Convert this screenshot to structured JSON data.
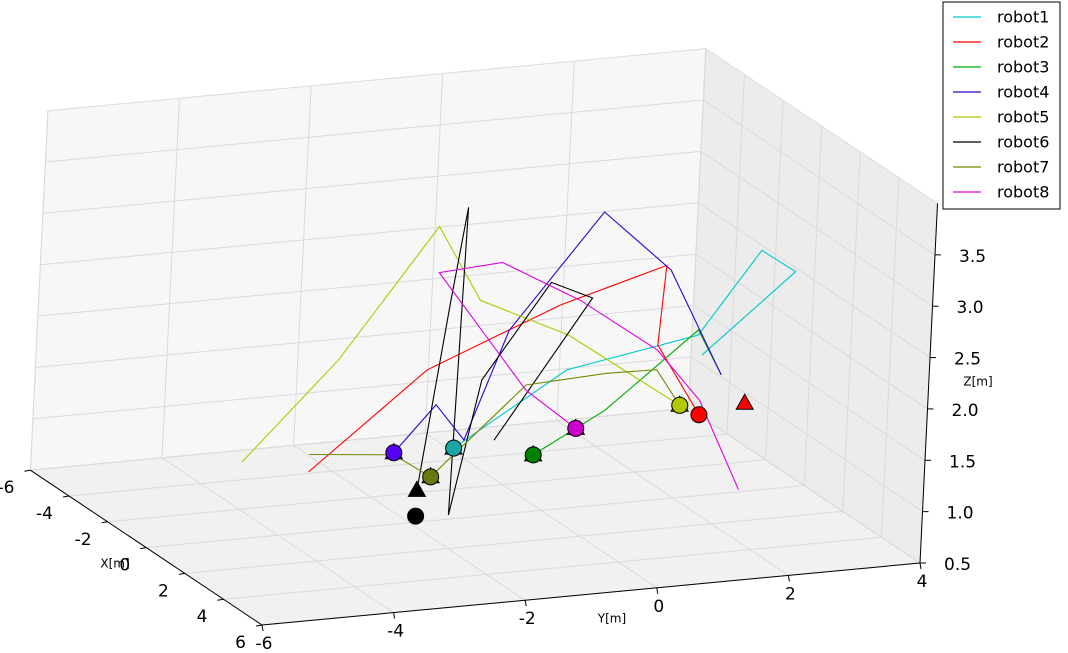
{
  "chart_data": {
    "type": "line3d",
    "xlabel": "X[m]",
    "ylabel": "Y[m]",
    "zlabel": "Z[m]",
    "xlim": [
      -6,
      6
    ],
    "ylim": [
      -6,
      4
    ],
    "zlim": [
      0.5,
      4.0
    ],
    "xticks": [
      -6,
      -4,
      -2,
      0,
      2,
      4,
      6
    ],
    "yticks": [
      -6,
      -4,
      -2,
      0,
      2,
      4
    ],
    "zticks": [
      0.5,
      {
        "value": 1.0,
        "label": "1.0"
      },
      1.5,
      {
        "value": 2.0,
        "label": "2.0"
      },
      2.5,
      {
        "value": 3.0,
        "label": "3.0"
      },
      3.5
    ],
    "grid": true,
    "legend": "upper right",
    "series": [
      {
        "name": "robot1",
        "color": "#00c8c8",
        "marker_color": "#1aa6a6",
        "x": [
          0,
          0,
          0,
          0,
          0,
          0
        ],
        "y": [
          -1.38,
          0.29,
          2.27,
          3.18,
          3.71,
          2.34
        ],
        "z": [
          1.19,
          1.85,
          2.07,
          2.84,
          2.6,
          1.87
        ],
        "start": {
          "x": 0,
          "y": -1.38,
          "z": 1.19
        },
        "goal": {
          "x": 0,
          "y": -1.38,
          "z": 1.19
        }
      },
      {
        "name": "robot2",
        "color": "#ff0000",
        "marker_color": "#ff0000",
        "x": [
          0,
          0,
          0,
          0,
          0,
          0
        ],
        "y": [
          -3.58,
          -1.84,
          0.14,
          1.74,
          1.66,
          2.34
        ],
        "z": [
          1.09,
          1.98,
          2.49,
          2.78,
          2.01,
          1.29
        ],
        "start": {
          "x": 0,
          "y": 2.34,
          "z": 1.29
        },
        "goal": {
          "x": 0,
          "y": 3.03,
          "z": 1.36
        }
      },
      {
        "name": "robot3",
        "color": "#00aa00",
        "marker_color": "#008000",
        "x": [
          0,
          0,
          0,
          0,
          0
        ],
        "y": [
          -0.16,
          0.9,
          1.51,
          2.27,
          2.65
        ],
        "z": [
          1.05,
          1.42,
          1.73,
          2.12,
          1.66
        ],
        "start": {
          "x": 0,
          "y": -0.16,
          "z": 1.05
        },
        "goal": {
          "x": 0,
          "y": -0.16,
          "z": 1.05
        }
      },
      {
        "name": "robot4",
        "color": "#3300cc",
        "marker_color": "#5500ee",
        "x": [
          0,
          0,
          0,
          0,
          0,
          0,
          0
        ],
        "y": [
          -2.29,
          -1.68,
          -1.23,
          -0.62,
          0.75,
          1.81,
          2.65
        ],
        "z": [
          1.2,
          1.63,
          1.26,
          2.29,
          3.36,
          2.73,
          1.66
        ],
        "start": {
          "x": 0,
          "y": -2.29,
          "z": 1.2
        },
        "goal": {
          "x": 0,
          "y": -2.29,
          "z": 1.2
        }
      },
      {
        "name": "robot5",
        "color": "#aacc00",
        "marker_color": "#b4c800",
        "x": [
          0,
          0,
          0,
          0,
          0,
          0
        ],
        "y": [
          -4.6,
          -3.2,
          -1.76,
          -1.08,
          0.29,
          2.04
        ],
        "z": [
          1.25,
          2.16,
          3.37,
          2.61,
          2.19,
          1.4
        ],
        "start": {
          "x": 0,
          "y": 2.04,
          "z": 1.4
        },
        "goal": {
          "x": 0,
          "y": 2.04,
          "z": 1.4
        }
      },
      {
        "name": "robot6",
        "color": "#000000",
        "marker_color": "#000000",
        "x": [
          0,
          0,
          0,
          0,
          0,
          0,
          0,
          0
        ],
        "y": [
          -1.91,
          -1.53,
          -1.33,
          -1.41,
          -1.0,
          -0.01,
          0.63,
          -0.77
        ],
        "z": [
          0.81,
          2.64,
          3.53,
          0.54,
          1.83,
          2.72,
          2.53,
          1.23
        ],
        "start": {
          "x": 0,
          "y": -1.91,
          "z": 0.56
        },
        "goal": {
          "x": 0,
          "y": -1.91,
          "z": 0.81
        }
      },
      {
        "name": "robot7",
        "color": "#778800",
        "marker_color": "#6b7a10",
        "x": [
          0,
          0,
          0,
          0,
          0,
          0,
          0
        ],
        "y": [
          -3.58,
          -2.29,
          -1.71,
          -0.32,
          0.9,
          1.66,
          2.04
        ],
        "z": [
          1.26,
          1.18,
          0.93,
          1.74,
          1.78,
          1.77,
          1.4
        ],
        "start": {
          "x": 0,
          "y": -1.71,
          "z": 0.93
        },
        "goal": {
          "x": 0,
          "y": -1.71,
          "z": 0.93
        }
      },
      {
        "name": "robot8",
        "color": "#dd00dd",
        "marker_color": "#cc00cc",
        "x": [
          0,
          0,
          0,
          0,
          0,
          0,
          0,
          0
        ],
        "y": [
          0.47,
          -0.32,
          -1.73,
          -0.77,
          0.44,
          1.66,
          2.34,
          3.0
        ],
        "z": [
          1.27,
          1.69,
          2.92,
          2.96,
          2.52,
          1.96,
          1.43,
          0.52
        ],
        "start": {
          "x": 0,
          "y": 0.47,
          "z": 1.27
        },
        "goal": {
          "x": 0,
          "y": 0.47,
          "z": 1.27
        }
      }
    ]
  }
}
